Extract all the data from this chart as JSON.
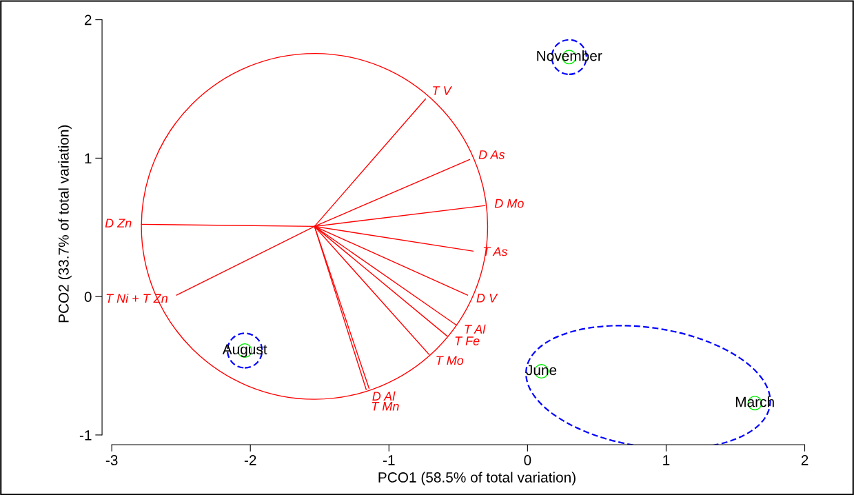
{
  "chart_data": {
    "type": "scatter",
    "xlabel": "PCO1 (58.5% of total variation)",
    "ylabel": "PCO2 (33.7% of total variation)",
    "xlim": [
      -3.07,
      2.34
    ],
    "ylim": [
      -1.07,
      2.12
    ],
    "xticks": [
      -3,
      -2,
      -1,
      0,
      1,
      2
    ],
    "yticks": [
      -1,
      0,
      1,
      2
    ],
    "grid": false,
    "legend": false,
    "series": [
      {
        "type": "line",
        "name": "T V",
        "color": "#ff0000",
        "line_style": "solid",
        "x": [
          -1.537,
          -0.736
        ],
        "values": [
          0.507,
          1.428
        ]
      },
      {
        "type": "line",
        "name": "D As",
        "color": "#ff0000",
        "line_style": "solid",
        "x": [
          -1.537,
          -0.418
        ],
        "values": [
          0.507,
          0.99
        ]
      },
      {
        "type": "line",
        "name": "D Mo",
        "color": "#ff0000",
        "line_style": "solid",
        "x": [
          -1.537,
          -0.308
        ],
        "values": [
          0.507,
          0.657
        ]
      },
      {
        "type": "line",
        "name": "T As",
        "color": "#ff0000",
        "line_style": "solid",
        "x": [
          -1.537,
          -0.393
        ],
        "values": [
          0.507,
          0.328
        ]
      },
      {
        "type": "line",
        "name": "D V",
        "color": "#ff0000",
        "line_style": "solid",
        "x": [
          -1.537,
          -0.433
        ],
        "values": [
          0.507,
          0.01
        ]
      },
      {
        "type": "line",
        "name": "T Al",
        "color": "#ff0000",
        "line_style": "solid",
        "x": [
          -1.537,
          -0.517
        ],
        "values": [
          0.507,
          -0.204
        ]
      },
      {
        "type": "line",
        "name": "T Fe",
        "color": "#ff0000",
        "line_style": "solid",
        "x": [
          -1.537,
          -0.582
        ],
        "values": [
          0.507,
          -0.284
        ]
      },
      {
        "type": "line",
        "name": "T Mo",
        "color": "#ff0000",
        "line_style": "solid",
        "x": [
          -1.537,
          -0.711
        ],
        "values": [
          0.507,
          -0.418
        ]
      },
      {
        "type": "line",
        "name": "D Al",
        "color": "#ff0000",
        "line_style": "solid",
        "x": [
          -1.537,
          -1.144
        ],
        "values": [
          0.507,
          -0.662
        ]
      },
      {
        "type": "line",
        "name": "T Mn",
        "color": "#ff0000",
        "line_style": "solid",
        "x": [
          -1.537,
          -1.164
        ],
        "values": [
          0.507,
          -0.672
        ]
      },
      {
        "type": "line",
        "name": "D Zn",
        "color": "#ff0000",
        "line_style": "solid",
        "x": [
          -1.537,
          -2.786
        ],
        "values": [
          0.507,
          0.522
        ]
      },
      {
        "type": "line",
        "name": "T Ni + T Zn",
        "color": "#ff0000",
        "line_style": "solid",
        "x": [
          -1.537,
          -2.532
        ],
        "values": [
          0.507,
          0.01
        ]
      },
      {
        "color": "#00ee00",
        "marker": "circle",
        "x": [
          0.3,
          -2.04,
          0.1,
          1.64
        ],
        "values": [
          1.73,
          -0.39,
          -0.54,
          -0.77
        ]
      }
    ],
    "annotations": [
      {
        "text": "November",
        "x": 0.3,
        "y": 1.73
      },
      {
        "text": "August",
        "x": -2.04,
        "y": -0.39
      },
      {
        "text": "June",
        "x": 0.1,
        "y": -0.54
      },
      {
        "text": "March",
        "x": 1.64,
        "y": -0.77
      }
    ]
  }
}
